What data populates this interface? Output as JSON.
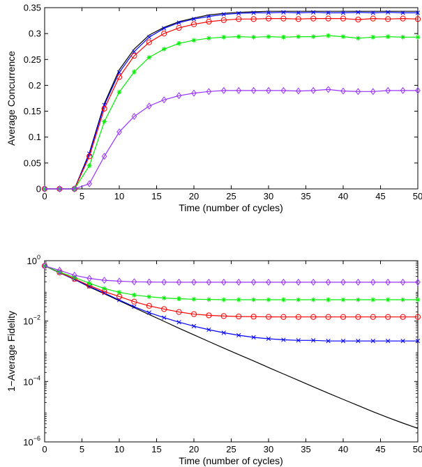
{
  "chart_data": [
    {
      "type": "line",
      "xlabel": "Time (number of cycles)",
      "ylabel": "Average Concurrence",
      "xlim": [
        0,
        50
      ],
      "ylim": [
        0,
        0.35
      ],
      "yscale": "linear",
      "grid": false,
      "legend": "none",
      "xticks": [
        0,
        5,
        10,
        15,
        20,
        25,
        30,
        35,
        40,
        45,
        50
      ],
      "xtick_labels": [
        "0",
        "5",
        "10",
        "15",
        "20",
        "25",
        "30",
        "35",
        "40",
        "45",
        "50"
      ],
      "yticks": [
        0,
        0.05,
        0.1,
        0.15,
        0.2,
        0.25,
        0.3,
        0.35
      ],
      "ytick_labels": [
        "0",
        "0.05",
        "0.1",
        "0.15",
        "0.2",
        "0.25",
        "0.3",
        "0.35"
      ],
      "x": [
        0,
        2,
        4,
        6,
        8,
        10,
        12,
        14,
        16,
        18,
        20,
        22,
        24,
        26,
        28,
        30,
        32,
        34,
        36,
        38,
        40,
        42,
        44,
        46,
        48,
        50
      ],
      "series": [
        {
          "color": "#000000",
          "marker": "none",
          "values": [
            0,
            0,
            0,
            0.07,
            0.165,
            0.23,
            0.27,
            0.297,
            0.312,
            0.323,
            0.33,
            0.336,
            0.339,
            0.341,
            0.342,
            0.343,
            0.343,
            0.343,
            0.343,
            0.343,
            0.343,
            0.343,
            0.343,
            0.343,
            0.343,
            0.343
          ]
        },
        {
          "color": "#0000ff",
          "marker": "x",
          "values": [
            0,
            0,
            0,
            0.068,
            0.162,
            0.225,
            0.265,
            0.293,
            0.31,
            0.321,
            0.328,
            0.333,
            0.337,
            0.339,
            0.34,
            0.34,
            0.341,
            0.34,
            0.341,
            0.34,
            0.34,
            0.341,
            0.34,
            0.341,
            0.34,
            0.34
          ]
        },
        {
          "color": "#ff0000",
          "marker": "o",
          "values": [
            0,
            0,
            0,
            0.063,
            0.155,
            0.216,
            0.257,
            0.283,
            0.3,
            0.311,
            0.318,
            0.323,
            0.326,
            0.328,
            0.328,
            0.329,
            0.329,
            0.328,
            0.329,
            0.329,
            0.329,
            0.327,
            0.329,
            0.328,
            0.329,
            0.328
          ]
        },
        {
          "color": "#00ee00",
          "marker": "*",
          "values": [
            0,
            0,
            0,
            0.045,
            0.13,
            0.187,
            0.226,
            0.254,
            0.27,
            0.281,
            0.287,
            0.291,
            0.293,
            0.294,
            0.293,
            0.294,
            0.293,
            0.294,
            0.294,
            0.296,
            0.294,
            0.291,
            0.293,
            0.294,
            0.293,
            0.293
          ]
        },
        {
          "color": "#9933ff",
          "marker": "d",
          "values": [
            0,
            0,
            0,
            0.01,
            0.063,
            0.11,
            0.14,
            0.16,
            0.172,
            0.18,
            0.185,
            0.188,
            0.19,
            0.19,
            0.19,
            0.19,
            0.19,
            0.189,
            0.19,
            0.192,
            0.189,
            0.188,
            0.188,
            0.19,
            0.19,
            0.19
          ]
        }
      ]
    },
    {
      "type": "line",
      "xlabel": "Time (number of cycles)",
      "ylabel": "1−Average Fidelity",
      "xlim": [
        0,
        50
      ],
      "ylim": [
        1e-06,
        1
      ],
      "yscale": "log",
      "grid": false,
      "legend": "none",
      "xticks": [
        0,
        5,
        10,
        15,
        20,
        25,
        30,
        35,
        40,
        45,
        50
      ],
      "xtick_labels": [
        "0",
        "5",
        "10",
        "15",
        "20",
        "25",
        "30",
        "35",
        "40",
        "45",
        "50"
      ],
      "yticks": [
        1e-06,
        0.0001,
        0.01,
        1
      ],
      "ytick_labels": [
        {
          "base": "10",
          "exp": "−6"
        },
        {
          "base": "10",
          "exp": "−4"
        },
        {
          "base": "10",
          "exp": "−2"
        },
        {
          "base": "10",
          "exp": "0"
        }
      ],
      "x": [
        0,
        2,
        4,
        6,
        8,
        10,
        12,
        14,
        16,
        18,
        20,
        22,
        24,
        26,
        28,
        30,
        32,
        34,
        36,
        38,
        40,
        42,
        44,
        46,
        48,
        50
      ],
      "series": [
        {
          "color": "#000000",
          "marker": "none",
          "values": [
            0.67,
            0.4,
            0.24,
            0.135,
            0.08,
            0.047,
            0.028,
            0.0165,
            0.0098,
            0.0058,
            0.0035,
            0.0021,
            0.00128,
            0.00078,
            0.00048,
            0.00029,
            0.000178,
            0.000109,
            6.7e-05,
            4.1e-05,
            2.55e-05,
            1.6e-05,
            1e-05,
            6.4e-06,
            4.2e-06,
            2.8e-06
          ]
        },
        {
          "color": "#0000ff",
          "marker": "x",
          "values": [
            0.67,
            0.4,
            0.24,
            0.14,
            0.085,
            0.05,
            0.03,
            0.019,
            0.013,
            0.0092,
            0.0068,
            0.0052,
            0.0041,
            0.0034,
            0.0029,
            0.0026,
            0.0024,
            0.0023,
            0.0023,
            0.0022,
            0.0022,
            0.0022,
            0.0022,
            0.0022,
            0.0022,
            0.0022
          ]
        },
        {
          "color": "#ff0000",
          "marker": "o",
          "values": [
            0.67,
            0.41,
            0.25,
            0.15,
            0.095,
            0.065,
            0.044,
            0.032,
            0.025,
            0.02,
            0.017,
            0.0155,
            0.0147,
            0.0142,
            0.014,
            0.0138,
            0.0137,
            0.0137,
            0.0137,
            0.0137,
            0.0137,
            0.0137,
            0.0137,
            0.0137,
            0.0137,
            0.0137
          ]
        },
        {
          "color": "#00ee00",
          "marker": "*",
          "values": [
            0.67,
            0.42,
            0.28,
            0.18,
            0.12,
            0.09,
            0.073,
            0.064,
            0.058,
            0.055,
            0.053,
            0.052,
            0.051,
            0.051,
            0.051,
            0.051,
            0.051,
            0.051,
            0.051,
            0.051,
            0.051,
            0.051,
            0.051,
            0.051,
            0.051,
            0.051
          ]
        },
        {
          "color": "#9933ff",
          "marker": "d",
          "values": [
            0.67,
            0.48,
            0.33,
            0.26,
            0.225,
            0.21,
            0.2,
            0.197,
            0.195,
            0.194,
            0.194,
            0.194,
            0.194,
            0.194,
            0.194,
            0.194,
            0.194,
            0.194,
            0.194,
            0.194,
            0.194,
            0.194,
            0.194,
            0.194,
            0.194,
            0.194
          ]
        }
      ]
    }
  ]
}
